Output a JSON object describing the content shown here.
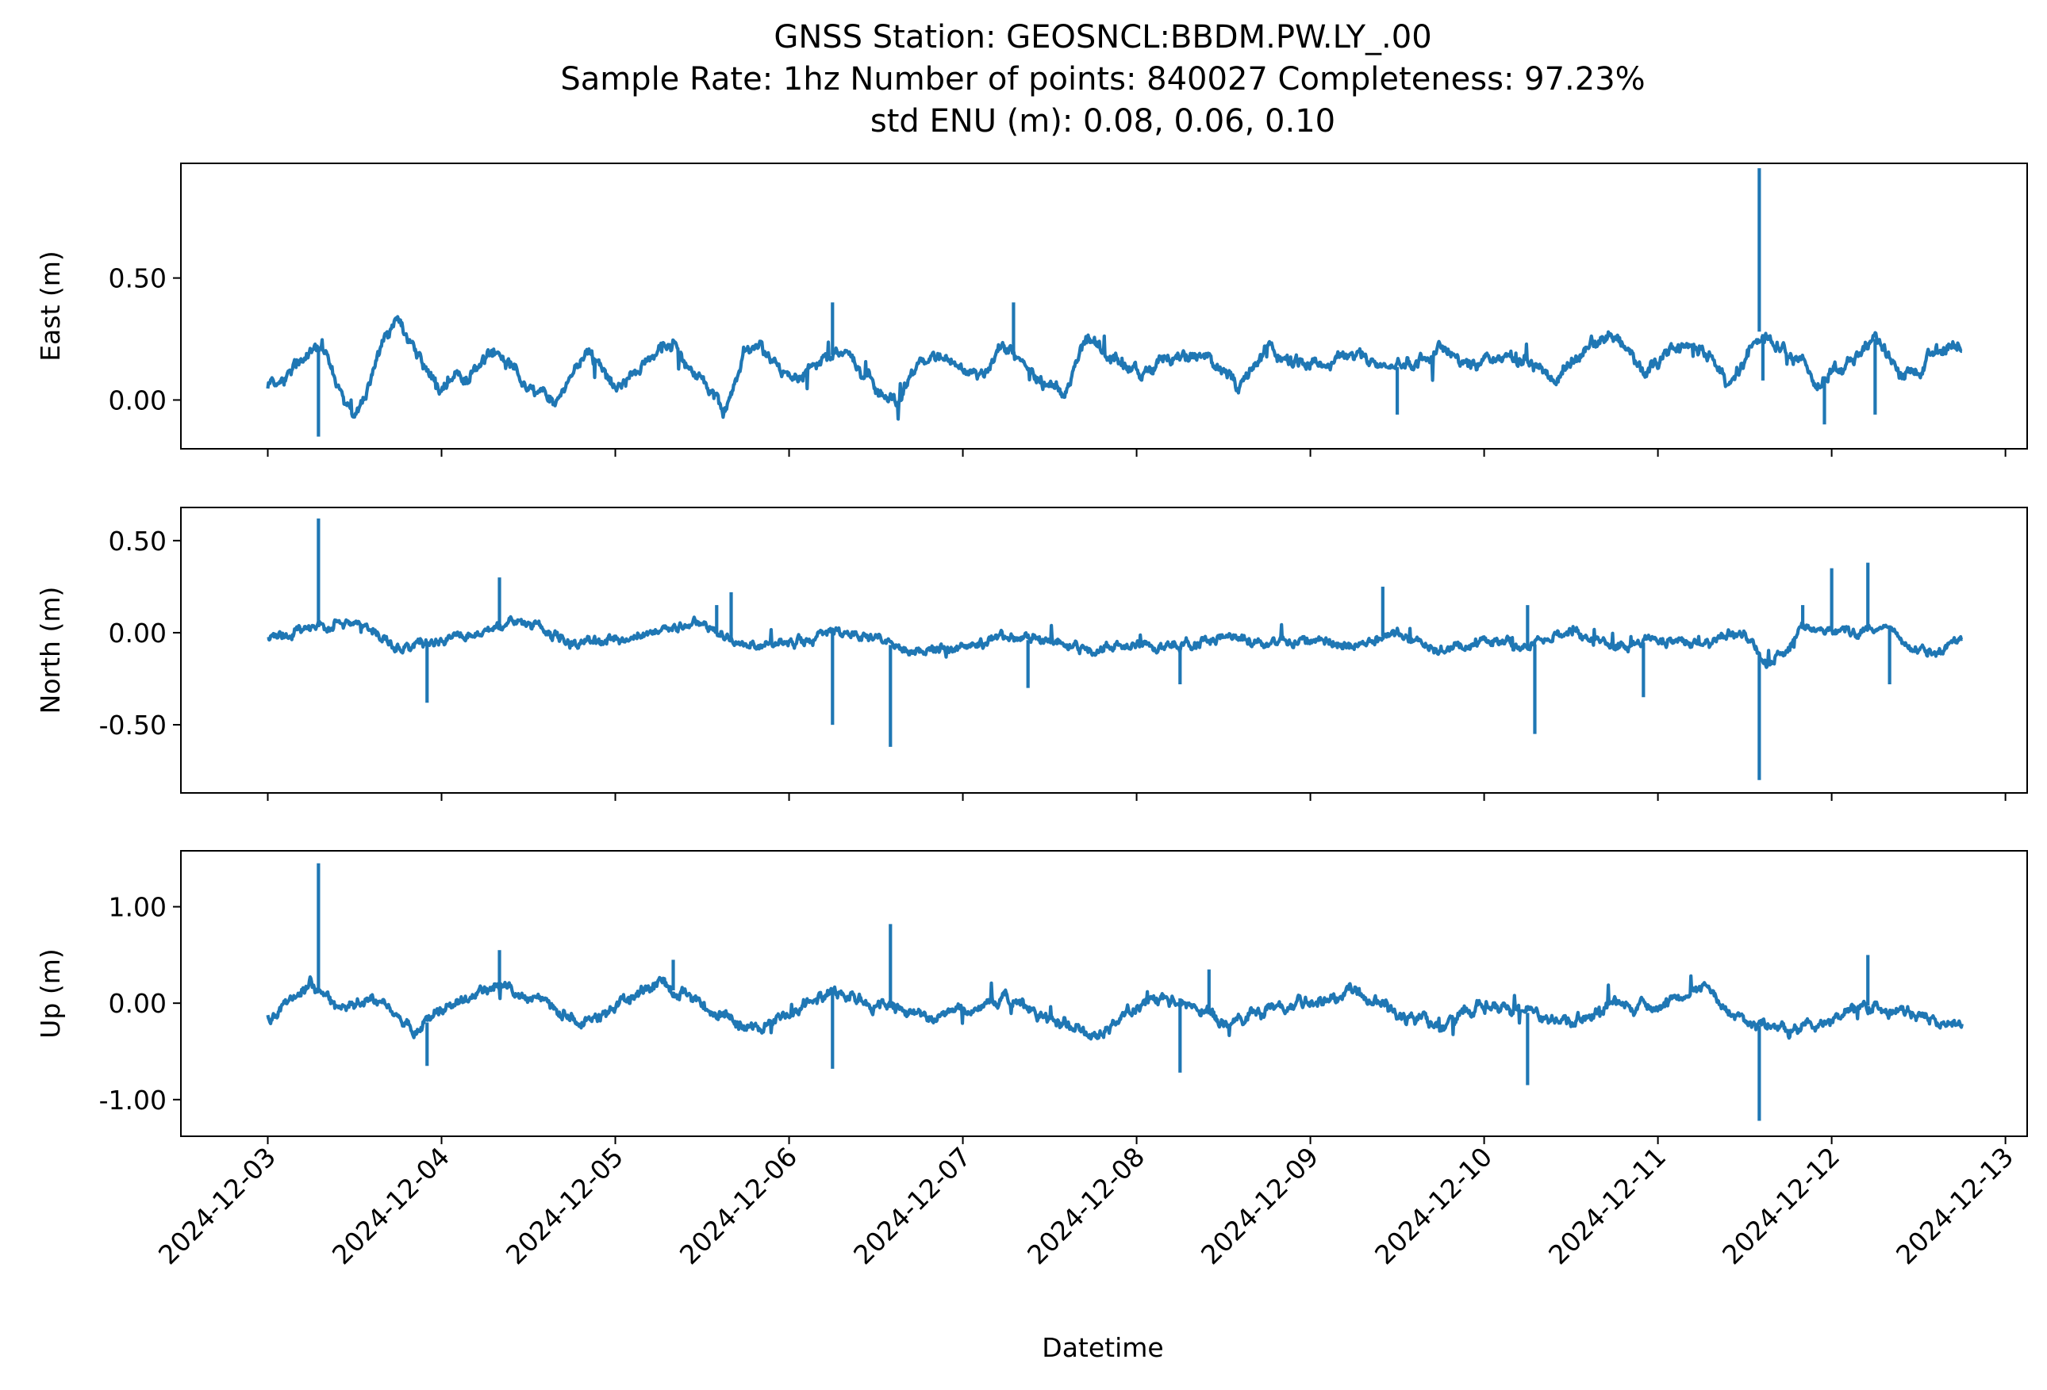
{
  "figure": {
    "title_lines": [
      "GNSS Station: GEOSNCL:BBDM.PW.LY_.00",
      "Sample Rate: 1hz   Number of points: 840027    Completeness:  97.23%",
      "std ENU (m):  0.08, 0.06, 0.10"
    ],
    "xlabel": "Datetime",
    "x_ticks": [
      "2024-12-03",
      "2024-12-04",
      "2024-12-05",
      "2024-12-06",
      "2024-12-07",
      "2024-12-08",
      "2024-12-09",
      "2024-12-10",
      "2024-12-11",
      "2024-12-12",
      "2024-12-13"
    ],
    "line_color": "#1f77b4"
  },
  "chart_data": [
    {
      "type": "line",
      "ylabel": "East (m)",
      "ylim": [
        -0.2,
        0.97
      ],
      "y_ticks": [
        {
          "value": 0.5,
          "label": "0.50"
        },
        {
          "value": 0.0,
          "label": "0.00"
        }
      ],
      "xlim": [
        "2024-12-02T12:00",
        "2024-12-13T03:00"
      ],
      "x_range": [
        "2024-12-03T00:00",
        "2024-12-12T18:00"
      ],
      "baseline": [
        {
          "x": "2024-12-03T00:00",
          "y": 0.07
        },
        {
          "x": "2024-12-03T03:00",
          "y": 0.1
        },
        {
          "x": "2024-12-03T06:00",
          "y": 0.22
        },
        {
          "x": "2024-12-03T08:00",
          "y": 0.2
        },
        {
          "x": "2024-12-03T10:00",
          "y": 0.03
        },
        {
          "x": "2024-12-03T12:00",
          "y": -0.08
        },
        {
          "x": "2024-12-03T14:00",
          "y": 0.05
        },
        {
          "x": "2024-12-03T16:00",
          "y": 0.25
        },
        {
          "x": "2024-12-03T18:00",
          "y": 0.3
        },
        {
          "x": "2024-12-03T20:00",
          "y": 0.2
        },
        {
          "x": "2024-12-03T22:00",
          "y": 0.12
        },
        {
          "x": "2024-12-04T00:00",
          "y": 0.05
        },
        {
          "x": "2024-12-04T04:00",
          "y": 0.1
        },
        {
          "x": "2024-12-04T08:00",
          "y": 0.22
        },
        {
          "x": "2024-12-04T12:00",
          "y": 0.05
        },
        {
          "x": "2024-12-04T16:00",
          "y": 0.0
        },
        {
          "x": "2024-12-04T20:00",
          "y": 0.2
        },
        {
          "x": "2024-12-05T00:00",
          "y": 0.05
        },
        {
          "x": "2024-12-05T04:00",
          "y": 0.15
        },
        {
          "x": "2024-12-05T08:00",
          "y": 0.25
        },
        {
          "x": "2024-12-05T12:00",
          "y": 0.08
        },
        {
          "x": "2024-12-05T15:00",
          "y": -0.05
        },
        {
          "x": "2024-12-05T18:00",
          "y": 0.2
        },
        {
          "x": "2024-12-05T20:00",
          "y": 0.22
        },
        {
          "x": "2024-12-06T00:00",
          "y": 0.07
        },
        {
          "x": "2024-12-06T04:00",
          "y": 0.15
        },
        {
          "x": "2024-12-06T08:00",
          "y": 0.22
        },
        {
          "x": "2024-12-06T12:00",
          "y": 0.05
        },
        {
          "x": "2024-12-06T15:00",
          "y": -0.03
        },
        {
          "x": "2024-12-06T18:00",
          "y": 0.18
        },
        {
          "x": "2024-12-06T22:00",
          "y": 0.15
        },
        {
          "x": "2024-12-07T02:00",
          "y": 0.1
        },
        {
          "x": "2024-12-07T06:00",
          "y": 0.22
        },
        {
          "x": "2024-12-07T10:00",
          "y": 0.12
        },
        {
          "x": "2024-12-07T14:00",
          "y": 0.02
        },
        {
          "x": "2024-12-07T17:00",
          "y": 0.25
        },
        {
          "x": "2024-12-07T22:00",
          "y": 0.15
        },
        {
          "x": "2024-12-08T02:00",
          "y": 0.12
        },
        {
          "x": "2024-12-08T06:00",
          "y": 0.2
        },
        {
          "x": "2024-12-08T10:00",
          "y": 0.18
        },
        {
          "x": "2024-12-08T14:00",
          "y": 0.05
        },
        {
          "x": "2024-12-08T18:00",
          "y": 0.2
        },
        {
          "x": "2024-12-08T22:00",
          "y": 0.15
        },
        {
          "x": "2024-12-09T02:00",
          "y": 0.14
        },
        {
          "x": "2024-12-09T06:00",
          "y": 0.18
        },
        {
          "x": "2024-12-09T10:00",
          "y": 0.12
        },
        {
          "x": "2024-12-09T14:00",
          "y": 0.15
        },
        {
          "x": "2024-12-09T18:00",
          "y": 0.22
        },
        {
          "x": "2024-12-09T22:00",
          "y": 0.15
        },
        {
          "x": "2024-12-10T02:00",
          "y": 0.18
        },
        {
          "x": "2024-12-10T06:00",
          "y": 0.15
        },
        {
          "x": "2024-12-10T10:00",
          "y": 0.1
        },
        {
          "x": "2024-12-10T14:00",
          "y": 0.2
        },
        {
          "x": "2024-12-10T18:00",
          "y": 0.26
        },
        {
          "x": "2024-12-10T22:00",
          "y": 0.12
        },
        {
          "x": "2024-12-11T02:00",
          "y": 0.2
        },
        {
          "x": "2024-12-11T06:00",
          "y": 0.22
        },
        {
          "x": "2024-12-11T10:00",
          "y": 0.05
        },
        {
          "x": "2024-12-11T14:00",
          "y": 0.28
        },
        {
          "x": "2024-12-11T18:00",
          "y": 0.2
        },
        {
          "x": "2024-12-11T22:00",
          "y": 0.08
        },
        {
          "x": "2024-12-12T02:00",
          "y": 0.15
        },
        {
          "x": "2024-12-12T06:00",
          "y": 0.25
        },
        {
          "x": "2024-12-12T10:00",
          "y": 0.08
        },
        {
          "x": "2024-12-12T14:00",
          "y": 0.2
        },
        {
          "x": "2024-12-12T18:00",
          "y": 0.22
        }
      ],
      "spikes": [
        {
          "x": "2024-12-03T07:00",
          "y": -0.15
        },
        {
          "x": "2024-12-06T06:00",
          "y": 0.4
        },
        {
          "x": "2024-12-07T07:00",
          "y": 0.4
        },
        {
          "x": "2024-12-09T12:00",
          "y": -0.06
        },
        {
          "x": "2024-12-11T14:00",
          "y": 0.95
        },
        {
          "x": "2024-12-11T14:30",
          "y": 0.08
        },
        {
          "x": "2024-12-11T23:00",
          "y": -0.1
        },
        {
          "x": "2024-12-12T06:00",
          "y": -0.06
        }
      ]
    },
    {
      "type": "line",
      "ylabel": "North (m)",
      "ylim": [
        -0.87,
        0.68
      ],
      "y_ticks": [
        {
          "value": 0.5,
          "label": "0.50"
        },
        {
          "value": 0.0,
          "label": "0.00"
        },
        {
          "value": -0.5,
          "label": "-0.50"
        }
      ],
      "xlim": [
        "2024-12-02T12:00",
        "2024-12-13T03:00"
      ],
      "x_range": [
        "2024-12-03T00:00",
        "2024-12-12T18:00"
      ],
      "baseline": [
        {
          "x": "2024-12-03T00:00",
          "y": -0.03
        },
        {
          "x": "2024-12-03T06:00",
          "y": 0.02
        },
        {
          "x": "2024-12-03T12:00",
          "y": 0.08
        },
        {
          "x": "2024-12-03T18:00",
          "y": -0.08
        },
        {
          "x": "2024-12-04T00:00",
          "y": -0.05
        },
        {
          "x": "2024-12-04T06:00",
          "y": 0.02
        },
        {
          "x": "2024-12-04T12:00",
          "y": 0.05
        },
        {
          "x": "2024-12-04T18:00",
          "y": -0.06
        },
        {
          "x": "2024-12-05T00:00",
          "y": -0.04
        },
        {
          "x": "2024-12-05T06:00",
          "y": 0.02
        },
        {
          "x": "2024-12-05T12:00",
          "y": 0.04
        },
        {
          "x": "2024-12-05T18:00",
          "y": -0.07
        },
        {
          "x": "2024-12-06T00:00",
          "y": -0.06
        },
        {
          "x": "2024-12-06T06:00",
          "y": 0.0
        },
        {
          "x": "2024-12-06T12:00",
          "y": -0.05
        },
        {
          "x": "2024-12-06T18:00",
          "y": -0.1
        },
        {
          "x": "2024-12-07T00:00",
          "y": -0.08
        },
        {
          "x": "2024-12-07T06:00",
          "y": -0.03
        },
        {
          "x": "2024-12-07T12:00",
          "y": -0.05
        },
        {
          "x": "2024-12-07T18:00",
          "y": -0.1
        },
        {
          "x": "2024-12-08T00:00",
          "y": -0.05
        },
        {
          "x": "2024-12-08T06:00",
          "y": -0.08
        },
        {
          "x": "2024-12-08T12:00",
          "y": -0.02
        },
        {
          "x": "2024-12-08T18:00",
          "y": -0.06
        },
        {
          "x": "2024-12-09T00:00",
          "y": -0.05
        },
        {
          "x": "2024-12-09T06:00",
          "y": -0.06
        },
        {
          "x": "2024-12-09T12:00",
          "y": 0.0
        },
        {
          "x": "2024-12-09T18:00",
          "y": -0.1
        },
        {
          "x": "2024-12-10T00:00",
          "y": -0.04
        },
        {
          "x": "2024-12-10T06:00",
          "y": -0.08
        },
        {
          "x": "2024-12-10T12:00",
          "y": 0.02
        },
        {
          "x": "2024-12-10T18:00",
          "y": -0.08
        },
        {
          "x": "2024-12-11T00:00",
          "y": -0.04
        },
        {
          "x": "2024-12-11T06:00",
          "y": -0.06
        },
        {
          "x": "2024-12-11T12:00",
          "y": 0.0
        },
        {
          "x": "2024-12-11T15:00",
          "y": -0.18
        },
        {
          "x": "2024-12-11T20:00",
          "y": 0.02
        },
        {
          "x": "2024-12-12T02:00",
          "y": 0.0
        },
        {
          "x": "2024-12-12T08:00",
          "y": 0.04
        },
        {
          "x": "2024-12-12T12:00",
          "y": -0.12
        },
        {
          "x": "2024-12-12T18:00",
          "y": -0.06
        }
      ],
      "spikes": [
        {
          "x": "2024-12-03T07:00",
          "y": 0.62
        },
        {
          "x": "2024-12-03T22:00",
          "y": -0.38
        },
        {
          "x": "2024-12-04T08:00",
          "y": 0.3
        },
        {
          "x": "2024-12-05T14:00",
          "y": 0.15
        },
        {
          "x": "2024-12-05T16:00",
          "y": 0.22
        },
        {
          "x": "2024-12-06T06:00",
          "y": -0.5
        },
        {
          "x": "2024-12-06T14:00",
          "y": -0.62
        },
        {
          "x": "2024-12-07T09:00",
          "y": -0.3
        },
        {
          "x": "2024-12-08T06:00",
          "y": -0.28
        },
        {
          "x": "2024-12-09T10:00",
          "y": 0.25
        },
        {
          "x": "2024-12-10T06:00",
          "y": 0.15
        },
        {
          "x": "2024-12-10T07:00",
          "y": -0.55
        },
        {
          "x": "2024-12-10T22:00",
          "y": -0.35
        },
        {
          "x": "2024-12-11T14:00",
          "y": -0.8
        },
        {
          "x": "2024-12-11T20:00",
          "y": 0.15
        },
        {
          "x": "2024-12-12T00:00",
          "y": 0.35
        },
        {
          "x": "2024-12-12T05:00",
          "y": 0.38
        },
        {
          "x": "2024-12-12T08:00",
          "y": -0.28
        }
      ]
    },
    {
      "type": "line",
      "ylabel": "Up (m)",
      "ylim": [
        -1.38,
        1.58
      ],
      "y_ticks": [
        {
          "value": 1.0,
          "label": "1.00"
        },
        {
          "value": 0.0,
          "label": "0.00"
        },
        {
          "value": -1.0,
          "label": "-1.00"
        }
      ],
      "xlim": [
        "2024-12-02T12:00",
        "2024-12-13T03:00"
      ],
      "x_range": [
        "2024-12-03T00:00",
        "2024-12-12T18:00"
      ],
      "baseline": [
        {
          "x": "2024-12-03T00:00",
          "y": -0.15
        },
        {
          "x": "2024-12-03T06:00",
          "y": 0.2
        },
        {
          "x": "2024-12-03T10:00",
          "y": -0.05
        },
        {
          "x": "2024-12-03T16:00",
          "y": 0.05
        },
        {
          "x": "2024-12-03T20:00",
          "y": -0.3
        },
        {
          "x": "2024-12-04T00:00",
          "y": -0.1
        },
        {
          "x": "2024-12-04T08:00",
          "y": 0.2
        },
        {
          "x": "2024-12-04T14:00",
          "y": 0.0
        },
        {
          "x": "2024-12-04T20:00",
          "y": -0.2
        },
        {
          "x": "2024-12-05T00:00",
          "y": -0.05
        },
        {
          "x": "2024-12-05T06:00",
          "y": 0.2
        },
        {
          "x": "2024-12-05T12:00",
          "y": 0.0
        },
        {
          "x": "2024-12-05T18:00",
          "y": -0.3
        },
        {
          "x": "2024-12-06T00:00",
          "y": -0.1
        },
        {
          "x": "2024-12-06T06:00",
          "y": 0.1
        },
        {
          "x": "2024-12-06T12:00",
          "y": 0.0
        },
        {
          "x": "2024-12-06T18:00",
          "y": -0.15
        },
        {
          "x": "2024-12-07T00:00",
          "y": -0.1
        },
        {
          "x": "2024-12-07T06:00",
          "y": 0.05
        },
        {
          "x": "2024-12-07T12:00",
          "y": -0.15
        },
        {
          "x": "2024-12-07T18:00",
          "y": -0.35
        },
        {
          "x": "2024-12-08T00:00",
          "y": -0.05
        },
        {
          "x": "2024-12-08T06:00",
          "y": 0.05
        },
        {
          "x": "2024-12-08T12:00",
          "y": -0.2
        },
        {
          "x": "2024-12-08T18:00",
          "y": -0.05
        },
        {
          "x": "2024-12-09T00:00",
          "y": 0.0
        },
        {
          "x": "2024-12-09T06:00",
          "y": 0.15
        },
        {
          "x": "2024-12-09T12:00",
          "y": -0.1
        },
        {
          "x": "2024-12-09T18:00",
          "y": -0.25
        },
        {
          "x": "2024-12-10T00:00",
          "y": 0.0
        },
        {
          "x": "2024-12-10T06:00",
          "y": -0.1
        },
        {
          "x": "2024-12-10T12:00",
          "y": -0.2
        },
        {
          "x": "2024-12-10T18:00",
          "y": 0.0
        },
        {
          "x": "2024-12-11T00:00",
          "y": -0.05
        },
        {
          "x": "2024-12-11T06:00",
          "y": 0.15
        },
        {
          "x": "2024-12-11T12:00",
          "y": -0.2
        },
        {
          "x": "2024-12-11T18:00",
          "y": -0.3
        },
        {
          "x": "2024-12-12T00:00",
          "y": -0.15
        },
        {
          "x": "2024-12-12T06:00",
          "y": 0.0
        },
        {
          "x": "2024-12-12T12:00",
          "y": -0.15
        },
        {
          "x": "2024-12-12T18:00",
          "y": -0.25
        }
      ],
      "spikes": [
        {
          "x": "2024-12-03T07:00",
          "y": 1.45
        },
        {
          "x": "2024-12-03T22:00",
          "y": -0.65
        },
        {
          "x": "2024-12-04T08:00",
          "y": 0.55
        },
        {
          "x": "2024-12-05T08:00",
          "y": 0.45
        },
        {
          "x": "2024-12-06T06:00",
          "y": -0.68
        },
        {
          "x": "2024-12-06T14:00",
          "y": 0.82
        },
        {
          "x": "2024-12-08T06:00",
          "y": -0.72
        },
        {
          "x": "2024-12-08T10:00",
          "y": 0.35
        },
        {
          "x": "2024-12-10T06:00",
          "y": -0.85
        },
        {
          "x": "2024-12-11T14:00",
          "y": -1.22
        },
        {
          "x": "2024-12-12T05:00",
          "y": 0.5
        }
      ]
    }
  ]
}
